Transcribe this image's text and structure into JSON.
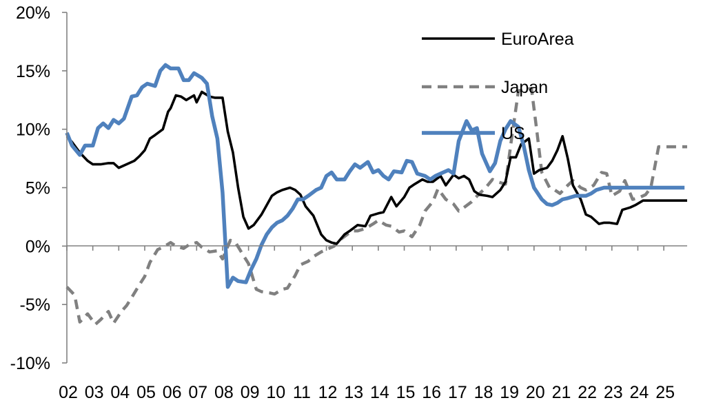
{
  "chart_data": {
    "type": "line",
    "title": "",
    "xlabel": "",
    "ylabel": "",
    "ylim": [
      -10,
      20
    ],
    "xlim": [
      2002.0,
      2025.9
    ],
    "yticks": [
      {
        "value": 20,
        "label": "20%"
      },
      {
        "value": 15,
        "label": "15%"
      },
      {
        "value": 10,
        "label": "10%"
      },
      {
        "value": 5,
        "label": "5%"
      },
      {
        "value": 0,
        "label": "0%"
      },
      {
        "value": -5,
        "label": "-5%"
      },
      {
        "value": -10,
        "label": "-10%"
      }
    ],
    "xticks": [
      {
        "value": 2002.0,
        "label": "02"
      },
      {
        "value": 2003.0,
        "label": "03"
      },
      {
        "value": 2004.0,
        "label": "04"
      },
      {
        "value": 2005.0,
        "label": "05"
      },
      {
        "value": 2006.0,
        "label": "06"
      },
      {
        "value": 2007.0,
        "label": "07"
      },
      {
        "value": 2008.0,
        "label": "08"
      },
      {
        "value": 2009.0,
        "label": "09"
      },
      {
        "value": 2010.0,
        "label": "10"
      },
      {
        "value": 2011.0,
        "label": "11"
      },
      {
        "value": 2012.0,
        "label": "12"
      },
      {
        "value": 2013.0,
        "label": "13"
      },
      {
        "value": 2014.0,
        "label": "14"
      },
      {
        "value": 2015.0,
        "label": "15"
      },
      {
        "value": 2016.0,
        "label": "16"
      },
      {
        "value": 2017.0,
        "label": "17"
      },
      {
        "value": 2018.0,
        "label": "18"
      },
      {
        "value": 2019.0,
        "label": "19"
      },
      {
        "value": 2020.0,
        "label": "20"
      },
      {
        "value": 2021.0,
        "label": "21"
      },
      {
        "value": 2022.0,
        "label": "22"
      },
      {
        "value": 2023.0,
        "label": "23"
      },
      {
        "value": 2024.0,
        "label": "24"
      },
      {
        "value": 2025.0,
        "label": "25"
      }
    ],
    "grid": false,
    "legend_position": "top-right",
    "series": [
      {
        "name": "EuroArea",
        "color": "#000000",
        "dash": "solid",
        "x": [
          2002.0,
          2002.2,
          2002.5,
          2002.8,
          2003.0,
          2003.3,
          2003.6,
          2003.8,
          2004.0,
          2004.3,
          2004.6,
          2004.8,
          2005.0,
          2005.2,
          2005.4,
          2005.7,
          2005.9,
          2006.0,
          2006.2,
          2006.4,
          2006.6,
          2006.9,
          2007.0,
          2007.2,
          2007.5,
          2007.7,
          2008.0,
          2008.2,
          2008.4,
          2008.6,
          2008.8,
          2009.0,
          2009.2,
          2009.5,
          2009.7,
          2009.9,
          2010.1,
          2010.3,
          2010.6,
          2010.8,
          2011.0,
          2011.2,
          2011.5,
          2011.8,
          2012.0,
          2012.2,
          2012.4,
          2012.7,
          2012.9,
          2013.2,
          2013.5,
          2013.7,
          2014.0,
          2014.2,
          2014.5,
          2014.7,
          2015.0,
          2015.2,
          2015.4,
          2015.7,
          2015.9,
          2016.1,
          2016.4,
          2016.6,
          2016.9,
          2017.1,
          2017.3,
          2017.5,
          2017.7,
          2017.9,
          2018.2,
          2018.4,
          2018.7,
          2018.9,
          2019.1,
          2019.3,
          2019.5,
          2019.8,
          2020.0,
          2020.2,
          2020.5,
          2020.7,
          2020.9,
          2021.1,
          2021.3,
          2021.5,
          2021.8,
          2022.0,
          2022.2,
          2022.5,
          2022.7,
          2022.9,
          2023.2,
          2023.4,
          2023.7,
          2023.9,
          2024.2,
          2024.4,
          2024.7,
          2024.9,
          2025.1,
          2025.3,
          2025.6,
          2025.9
        ],
        "y": [
          9.4,
          8.9,
          8.0,
          7.3,
          7.0,
          7.0,
          7.1,
          7.1,
          6.7,
          7.0,
          7.3,
          7.7,
          8.2,
          9.2,
          9.5,
          10.0,
          11.5,
          11.8,
          12.9,
          12.8,
          12.5,
          12.9,
          12.3,
          13.2,
          12.8,
          12.7,
          12.7,
          9.8,
          8.0,
          5.0,
          2.5,
          1.5,
          1.8,
          2.7,
          3.5,
          4.3,
          4.6,
          4.8,
          5.0,
          4.8,
          4.4,
          3.4,
          2.6,
          1.0,
          0.5,
          0.3,
          0.2,
          1.0,
          1.3,
          1.8,
          1.7,
          2.6,
          2.8,
          2.9,
          4.2,
          3.4,
          4.2,
          5.0,
          5.3,
          5.7,
          5.5,
          5.5,
          6.0,
          5.2,
          6.1,
          5.8,
          6.0,
          5.7,
          4.7,
          4.4,
          4.3,
          4.2,
          4.8,
          5.5,
          7.6,
          7.6,
          8.7,
          9.2,
          6.2,
          6.5,
          6.7,
          7.3,
          8.2,
          9.4,
          7.5,
          5.2,
          4.0,
          2.7,
          2.5,
          1.9,
          2.0,
          2.0,
          1.9,
          3.1,
          3.3,
          3.5,
          3.9,
          3.9,
          3.9,
          3.9,
          3.9,
          3.9,
          3.9,
          3.9
        ],
        "y_note": ""
      },
      {
        "name": "Japan",
        "color": "#808080",
        "dash": "dashed",
        "x": [
          2002.0,
          2002.3,
          2002.5,
          2002.8,
          2003.1,
          2003.3,
          2003.6,
          2003.8,
          2004.1,
          2004.3,
          2004.5,
          2004.8,
          2005.0,
          2005.2,
          2005.5,
          2005.7,
          2006.0,
          2006.2,
          2006.5,
          2006.7,
          2007.0,
          2007.2,
          2007.5,
          2007.8,
          2008.0,
          2008.3,
          2008.5,
          2008.8,
          2009.0,
          2009.3,
          2009.5,
          2009.8,
          2010.0,
          2010.3,
          2010.5,
          2010.8,
          2011.0,
          2011.3,
          2011.5,
          2011.8,
          2012.0,
          2012.3,
          2012.5,
          2012.8,
          2013.0,
          2013.2,
          2013.5,
          2013.8,
          2014.0,
          2014.3,
          2014.5,
          2014.8,
          2015.0,
          2015.3,
          2015.6,
          2015.8,
          2016.1,
          2016.3,
          2016.6,
          2016.9,
          2017.1,
          2017.3,
          2017.6,
          2017.9,
          2018.1,
          2018.4,
          2018.6,
          2018.9,
          2019.1,
          2019.4,
          2019.7,
          2019.9,
          2020.1,
          2020.3,
          2020.6,
          2020.8,
          2021.0,
          2021.3,
          2021.5,
          2021.8,
          2022.0,
          2022.3,
          2022.6,
          2022.8,
          2023.0,
          2023.3,
          2023.5,
          2023.8,
          2024.0,
          2024.3,
          2024.5,
          2024.8,
          2025.0,
          2025.3,
          2025.6,
          2025.9
        ],
        "y": [
          -3.5,
          -4.2,
          -6.5,
          -5.8,
          -6.7,
          -6.3,
          -5.6,
          -6.6,
          -5.6,
          -5.1,
          -4.4,
          -3.3,
          -2.6,
          -1.4,
          -0.3,
          -0.1,
          0.3,
          0.0,
          -0.2,
          0.1,
          0.3,
          -0.1,
          -0.5,
          -0.4,
          -1.1,
          0.5,
          0.3,
          -0.8,
          -1.5,
          -3.7,
          -3.9,
          -4.0,
          -4.1,
          -3.7,
          -3.6,
          -2.5,
          -1.6,
          -1.3,
          -0.9,
          -0.5,
          -0.3,
          0.0,
          0.5,
          1.0,
          1.3,
          1.3,
          1.5,
          1.9,
          2.2,
          1.8,
          1.7,
          1.2,
          1.3,
          0.8,
          1.8,
          3.0,
          3.8,
          4.9,
          4.0,
          3.6,
          3.0,
          3.3,
          3.8,
          4.5,
          4.9,
          5.7,
          5.5,
          5.3,
          8.6,
          13.3,
          13.4,
          13.5,
          10.0,
          6.3,
          5.0,
          4.8,
          4.5,
          5.2,
          5.6,
          5.0,
          4.8,
          5.2,
          6.3,
          6.2,
          4.3,
          4.7,
          5.6,
          4.0,
          4.1,
          4.4,
          5.0,
          8.5,
          8.5,
          8.5,
          8.5,
          8.5
        ],
        "y_note": ""
      },
      {
        "name": "US",
        "color": "#4F81BD",
        "dash": "solid",
        "x": [
          2002.0,
          2002.2,
          2002.5,
          2002.7,
          2003.0,
          2003.2,
          2003.4,
          2003.6,
          2003.8,
          2004.0,
          2004.2,
          2004.5,
          2004.7,
          2004.9,
          2005.1,
          2005.4,
          2005.6,
          2005.8,
          2006.0,
          2006.3,
          2006.5,
          2006.7,
          2006.9,
          2007.2,
          2007.4,
          2007.6,
          2007.8,
          2008.0,
          2008.2,
          2008.4,
          2008.6,
          2008.9,
          2009.1,
          2009.3,
          2009.5,
          2009.7,
          2009.9,
          2010.1,
          2010.3,
          2010.5,
          2010.7,
          2010.9,
          2011.1,
          2011.3,
          2011.6,
          2011.8,
          2012.0,
          2012.2,
          2012.4,
          2012.7,
          2012.9,
          2013.1,
          2013.3,
          2013.6,
          2013.8,
          2014.0,
          2014.2,
          2014.4,
          2014.6,
          2014.9,
          2015.1,
          2015.3,
          2015.5,
          2015.8,
          2016.0,
          2016.2,
          2016.5,
          2016.7,
          2016.9,
          2017.1,
          2017.4,
          2017.6,
          2017.8,
          2018.0,
          2018.3,
          2018.5,
          2018.7,
          2018.9,
          2019.1,
          2019.4,
          2019.6,
          2019.8,
          2020.0,
          2020.3,
          2020.5,
          2020.7,
          2020.9,
          2021.1,
          2021.3,
          2021.6,
          2021.8,
          2022.0,
          2022.2,
          2022.4,
          2022.7,
          2022.9,
          2023.1,
          2023.3,
          2023.6,
          2023.8,
          2024.0,
          2024.2,
          2024.5,
          2024.7,
          2024.9,
          2025.1,
          2025.3,
          2025.6,
          2025.8
        ],
        "y": [
          9.7,
          8.6,
          7.8,
          8.6,
          8.6,
          10.1,
          10.5,
          10.1,
          10.8,
          10.5,
          10.9,
          12.8,
          12.9,
          13.6,
          13.9,
          13.7,
          15.0,
          15.5,
          15.2,
          15.2,
          14.2,
          14.2,
          14.8,
          14.4,
          13.9,
          11.1,
          9.2,
          4.6,
          -3.5,
          -2.7,
          -3.0,
          -3.1,
          -2.0,
          -1.1,
          0.1,
          1.0,
          1.6,
          2.0,
          2.2,
          2.6,
          3.2,
          4.0,
          4.0,
          4.3,
          4.8,
          5.0,
          6.0,
          6.3,
          5.7,
          5.7,
          6.4,
          7.0,
          6.7,
          7.2,
          6.3,
          6.5,
          6.0,
          5.7,
          6.4,
          6.3,
          7.3,
          7.2,
          6.2,
          6.0,
          5.7,
          6.0,
          6.3,
          6.5,
          6.2,
          9.0,
          10.7,
          9.9,
          10.1,
          7.9,
          6.4,
          7.1,
          9.0,
          10.0,
          10.7,
          10.2,
          8.6,
          6.5,
          5.0,
          4.0,
          3.6,
          3.5,
          3.7,
          4.0,
          4.1,
          4.3,
          4.3,
          4.3,
          4.5,
          4.8,
          5.0,
          5.0,
          5.0,
          5.0,
          5.0,
          5.0,
          5.0,
          5.0,
          5.0,
          5.0,
          5.0,
          5.0,
          5.0,
          5.0,
          5.0
        ],
        "y_note": ""
      }
    ]
  }
}
